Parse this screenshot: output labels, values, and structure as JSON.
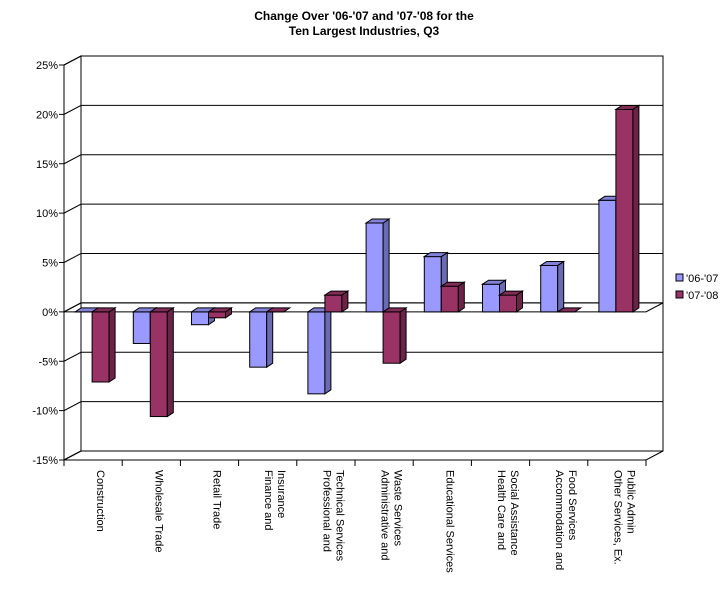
{
  "chart_data": {
    "type": "bar",
    "title_lines": [
      "Change Over '06-'07 and '07-'08 for the",
      "Ten Largest Industries, Q3"
    ],
    "categories": [
      [
        "Construction"
      ],
      [
        "Wholesale Trade"
      ],
      [
        "Retail Trade"
      ],
      [
        "Finance and",
        "Insurance"
      ],
      [
        "Professional and",
        "Technical Services"
      ],
      [
        "Administrative and",
        "Waste Services"
      ],
      [
        "Educational Services"
      ],
      [
        "Health Care and",
        "Social Assistance"
      ],
      [
        "Accommodation and",
        "Food Services"
      ],
      [
        "Other Services, Ex.",
        "Public Admin"
      ]
    ],
    "series": [
      {
        "name": "'06-'07",
        "color": "#9999ff",
        "values": [
          0.0,
          -3.2,
          -1.3,
          -5.6,
          -8.3,
          9.0,
          5.6,
          2.8,
          4.7,
          11.3
        ]
      },
      {
        "name": "'07-'08",
        "color": "#993366",
        "values": [
          -7.1,
          -10.6,
          -0.6,
          0.0,
          1.7,
          -5.2,
          2.6,
          1.7,
          0.0,
          20.5
        ]
      }
    ],
    "yticks": [
      "25%",
      "20%",
      "15%",
      "10%",
      "5%",
      "0%",
      "-5%",
      "-10%",
      "-15%"
    ],
    "ylim": [
      -15,
      25
    ],
    "grid": true,
    "legend_position": "right"
  }
}
